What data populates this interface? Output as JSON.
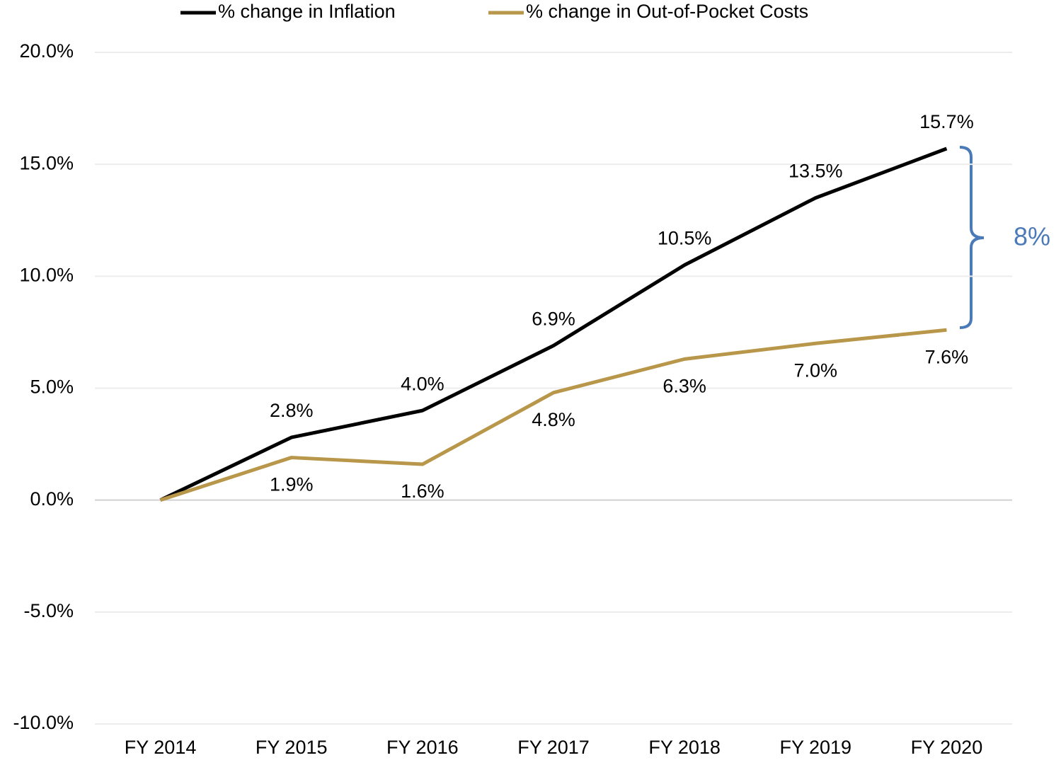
{
  "chart_data": {
    "type": "line",
    "categories": [
      "FY 2014",
      "FY 2015",
      "FY 2016",
      "FY 2017",
      "FY 2018",
      "FY 2019",
      "FY 2020"
    ],
    "series": [
      {
        "name": "% change in Inflation",
        "color": "#000000",
        "label_position": "above",
        "values": [
          0,
          2.8,
          4.0,
          6.9,
          10.5,
          13.5,
          15.7
        ],
        "value_labels": [
          null,
          "2.8%",
          "4.0%",
          "6.9%",
          "10.5%",
          "13.5%",
          "15.7%"
        ]
      },
      {
        "name": "% change in Out-of-Pocket Costs",
        "color": "#b8964a",
        "label_position": "below",
        "values": [
          0,
          1.9,
          1.6,
          4.8,
          6.3,
          7.0,
          7.6
        ],
        "value_labels": [
          null,
          "1.9%",
          "1.6%",
          "4.8%",
          "6.3%",
          "7.0%",
          "7.6%"
        ]
      }
    ],
    "ylim": [
      -10,
      20
    ],
    "yticks": [
      {
        "value": -10,
        "label": "-10.0%"
      },
      {
        "value": -5,
        "label": "-5.0%"
      },
      {
        "value": 0,
        "label": "0.0%"
      },
      {
        "value": 5,
        "label": "5.0%"
      },
      {
        "value": 10,
        "label": "10.0%"
      },
      {
        "value": 15,
        "label": "15.0%"
      },
      {
        "value": 20,
        "label": "20.0%"
      }
    ],
    "grid": true,
    "legend": "top",
    "annotation": "8%",
    "annotation_color": "#4a7ab8"
  }
}
